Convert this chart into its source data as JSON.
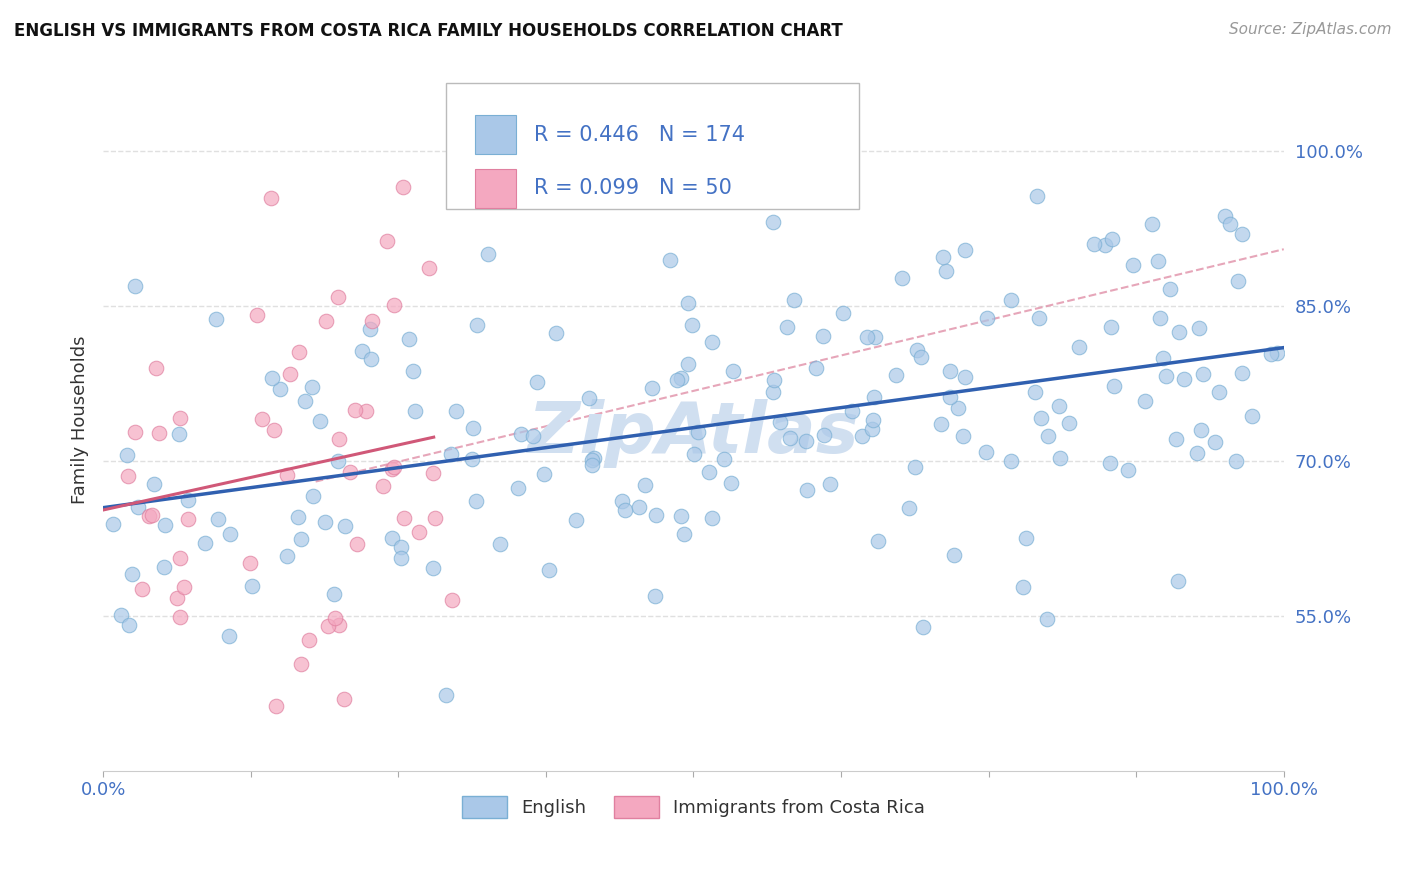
{
  "title": "ENGLISH VS IMMIGRANTS FROM COSTA RICA FAMILY HOUSEHOLDS CORRELATION CHART",
  "source": "Source: ZipAtlas.com",
  "ylabel": "Family Households",
  "ytick_labels": [
    "55.0%",
    "70.0%",
    "85.0%",
    "100.0%"
  ],
  "ytick_values": [
    0.55,
    0.7,
    0.85,
    1.0
  ],
  "xlim": [
    0.0,
    1.0
  ],
  "ylim": [
    0.4,
    1.08
  ],
  "legend_english_R": "0.446",
  "legend_english_N": "174",
  "legend_immigrant_R": "0.099",
  "legend_immigrant_N": "50",
  "english_color": "#aac8e8",
  "english_edge_color": "#7aafd4",
  "english_line_color": "#3060b0",
  "immigrant_color": "#f4a8c0",
  "immigrant_edge_color": "#e080a0",
  "immigrant_line_color": "#d05878",
  "immigrant_dash_color": "#e090a8",
  "watermark_color": "#d0dff0",
  "background_color": "#ffffff",
  "grid_color": "#e0e0e0",
  "title_color": "#111111",
  "source_color": "#999999",
  "legend_text_color": "#4472c4",
  "tick_color": "#4472c4",
  "legend_label_english": "English",
  "legend_label_immigrant": "Immigrants from Costa Rica"
}
